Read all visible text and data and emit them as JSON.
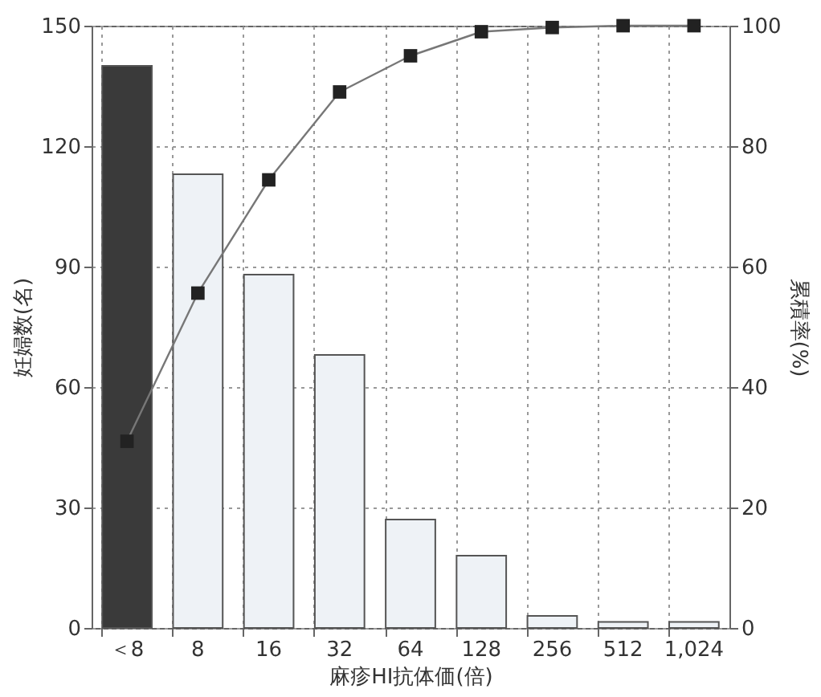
{
  "chart_data": {
    "type": "bar",
    "xlabel": "麻疹HI抗体価(倍)",
    "ylabel": "妊婦数(名)",
    "y2label": "累積率(%)",
    "categories": [
      "＜8",
      "8",
      "16",
      "32",
      "64",
      "128",
      "256",
      "512",
      "1,024"
    ],
    "series": [
      {
        "colors": [
          "#3a3a3a",
          "#eef2f6",
          "#eef2f6",
          "#eef2f6",
          "#eef2f6",
          "#eef2f6",
          "#eef2f6",
          "#eef2f6",
          "#eef2f6"
        ],
        "values": [
          140,
          113,
          88,
          68,
          27,
          18,
          3,
          1.5,
          1.5
        ]
      },
      {
        "type": "line",
        "axis": "y2",
        "color": "#222222",
        "values": [
          31,
          55.6,
          74.4,
          89,
          95,
          99,
          99.7,
          100,
          100
        ]
      }
    ],
    "ylim": [
      0,
      150
    ],
    "yticks": [
      0,
      30,
      60,
      90,
      120,
      150
    ],
    "y2lim": [
      0,
      100
    ],
    "y2ticks": [
      0,
      20,
      40,
      60,
      80,
      100
    ],
    "grid": true,
    "marker": "square",
    "line_style": "solid"
  }
}
